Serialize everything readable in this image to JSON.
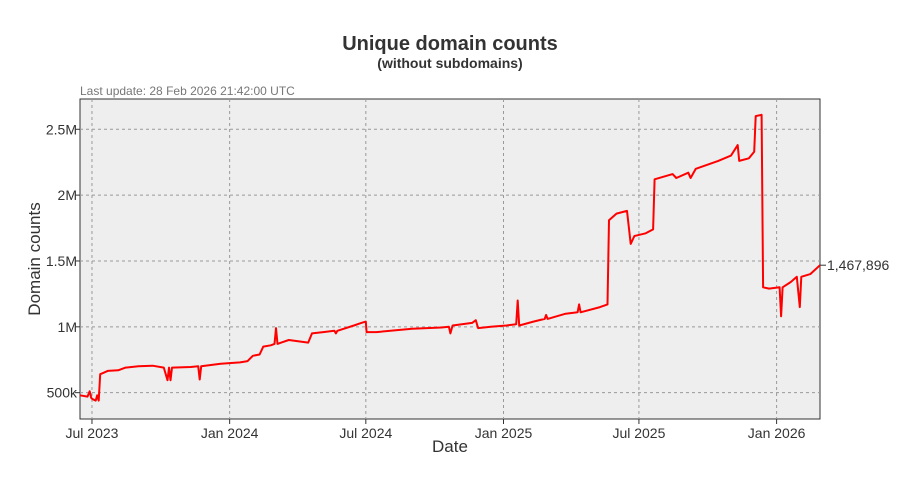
{
  "chart_data": {
    "type": "line",
    "title": "Unique domain counts",
    "subtitle": "(without subdomains)",
    "note": "Last update: 28 Feb 2026 21:42:00 UTC",
    "xlabel": "Date",
    "ylabel": "Domain counts",
    "xlim": [
      "2023-06-15",
      "2026-02-28"
    ],
    "ylim": [
      300000,
      2730000
    ],
    "grid": true,
    "line_color": "#ff0000",
    "plot_background": "#eeeeee",
    "x_ticks": [
      {
        "date": "2023-07-01",
        "label": "Jul 2023"
      },
      {
        "date": "2024-01-01",
        "label": "Jan 2024"
      },
      {
        "date": "2024-07-01",
        "label": "Jul 2024"
      },
      {
        "date": "2025-01-01",
        "label": "Jan 2025"
      },
      {
        "date": "2025-07-01",
        "label": "Jul 2025"
      },
      {
        "date": "2026-01-01",
        "label": "Jan 2026"
      }
    ],
    "y_ticks": [
      {
        "value": 500000,
        "label": "500k"
      },
      {
        "value": 1000000,
        "label": "1M"
      },
      {
        "value": 1500000,
        "label": "1.5M"
      },
      {
        "value": 2000000,
        "label": "2M"
      },
      {
        "value": 2500000,
        "label": "2.5M"
      }
    ],
    "end_value": 1467896,
    "end_label": "1,467,896",
    "series": [
      {
        "points": [
          [
            "2023-06-15",
            480000
          ],
          [
            "2023-06-25",
            470000
          ],
          [
            "2023-06-28",
            510000
          ],
          [
            "2023-06-30",
            460000
          ],
          [
            "2023-07-02",
            450000
          ],
          [
            "2023-07-06",
            440000
          ],
          [
            "2023-07-08",
            480000
          ],
          [
            "2023-07-10",
            440000
          ],
          [
            "2023-07-12",
            640000
          ],
          [
            "2023-07-16",
            650000
          ],
          [
            "2023-07-22",
            665000
          ],
          [
            "2023-08-05",
            670000
          ],
          [
            "2023-08-15",
            690000
          ],
          [
            "2023-09-01",
            700000
          ],
          [
            "2023-09-20",
            705000
          ],
          [
            "2023-10-05",
            690000
          ],
          [
            "2023-10-10",
            595000
          ],
          [
            "2023-10-12",
            690000
          ],
          [
            "2023-10-14",
            595000
          ],
          [
            "2023-10-16",
            690000
          ],
          [
            "2023-11-10",
            695000
          ],
          [
            "2023-11-20",
            700000
          ],
          [
            "2023-11-22",
            600000
          ],
          [
            "2023-11-24",
            700000
          ],
          [
            "2023-12-20",
            720000
          ],
          [
            "2024-01-15",
            730000
          ],
          [
            "2024-01-25",
            740000
          ],
          [
            "2024-02-01",
            780000
          ],
          [
            "2024-02-10",
            790000
          ],
          [
            "2024-02-15",
            850000
          ],
          [
            "2024-02-25",
            860000
          ],
          [
            "2024-03-01",
            870000
          ],
          [
            "2024-03-03",
            990000
          ],
          [
            "2024-03-05",
            870000
          ],
          [
            "2024-03-10",
            880000
          ],
          [
            "2024-03-20",
            900000
          ],
          [
            "2024-04-15",
            880000
          ],
          [
            "2024-04-20",
            950000
          ],
          [
            "2024-05-05",
            960000
          ],
          [
            "2024-05-20",
            970000
          ],
          [
            "2024-05-22",
            950000
          ],
          [
            "2024-05-24",
            970000
          ],
          [
            "2024-06-15",
            1010000
          ],
          [
            "2024-06-25",
            1030000
          ],
          [
            "2024-07-01",
            1040000
          ],
          [
            "2024-07-02",
            960000
          ],
          [
            "2024-07-15",
            960000
          ],
          [
            "2024-09-01",
            985000
          ],
          [
            "2024-10-10",
            995000
          ],
          [
            "2024-10-20",
            1000000
          ],
          [
            "2024-10-22",
            950000
          ],
          [
            "2024-10-25",
            1010000
          ],
          [
            "2024-11-20",
            1030000
          ],
          [
            "2024-11-25",
            1050000
          ],
          [
            "2024-11-28",
            990000
          ],
          [
            "2024-12-15",
            1000000
          ],
          [
            "2025-01-05",
            1010000
          ],
          [
            "2025-01-18",
            1020000
          ],
          [
            "2025-01-20",
            1200000
          ],
          [
            "2025-01-22",
            1010000
          ],
          [
            "2025-02-10",
            1040000
          ],
          [
            "2025-02-25",
            1060000
          ],
          [
            "2025-02-27",
            1090000
          ],
          [
            "2025-03-01",
            1060000
          ],
          [
            "2025-03-25",
            1100000
          ],
          [
            "2025-04-10",
            1110000
          ],
          [
            "2025-04-12",
            1170000
          ],
          [
            "2025-04-14",
            1110000
          ],
          [
            "2025-05-10",
            1150000
          ],
          [
            "2025-05-20",
            1170000
          ],
          [
            "2025-05-22",
            1810000
          ],
          [
            "2025-06-01",
            1860000
          ],
          [
            "2025-06-15",
            1880000
          ],
          [
            "2025-06-20",
            1630000
          ],
          [
            "2025-06-25",
            1690000
          ],
          [
            "2025-07-10",
            1710000
          ],
          [
            "2025-07-20",
            1740000
          ],
          [
            "2025-07-22",
            2120000
          ],
          [
            "2025-08-15",
            2160000
          ],
          [
            "2025-08-20",
            2130000
          ],
          [
            "2025-09-05",
            2170000
          ],
          [
            "2025-09-08",
            2130000
          ],
          [
            "2025-09-15",
            2200000
          ],
          [
            "2025-10-15",
            2260000
          ],
          [
            "2025-11-01",
            2300000
          ],
          [
            "2025-11-10",
            2380000
          ],
          [
            "2025-11-12",
            2260000
          ],
          [
            "2025-11-25",
            2280000
          ],
          [
            "2025-12-02",
            2330000
          ],
          [
            "2025-12-04",
            2600000
          ],
          [
            "2025-12-12",
            2610000
          ],
          [
            "2025-12-14",
            1300000
          ],
          [
            "2025-12-22",
            1290000
          ],
          [
            "2026-01-05",
            1300000
          ],
          [
            "2026-01-07",
            1080000
          ],
          [
            "2026-01-09",
            1300000
          ],
          [
            "2026-01-20",
            1340000
          ],
          [
            "2026-01-28",
            1380000
          ],
          [
            "2026-02-01",
            1150000
          ],
          [
            "2026-02-03",
            1380000
          ],
          [
            "2026-02-15",
            1400000
          ],
          [
            "2026-02-28",
            1467896
          ]
        ]
      }
    ]
  }
}
